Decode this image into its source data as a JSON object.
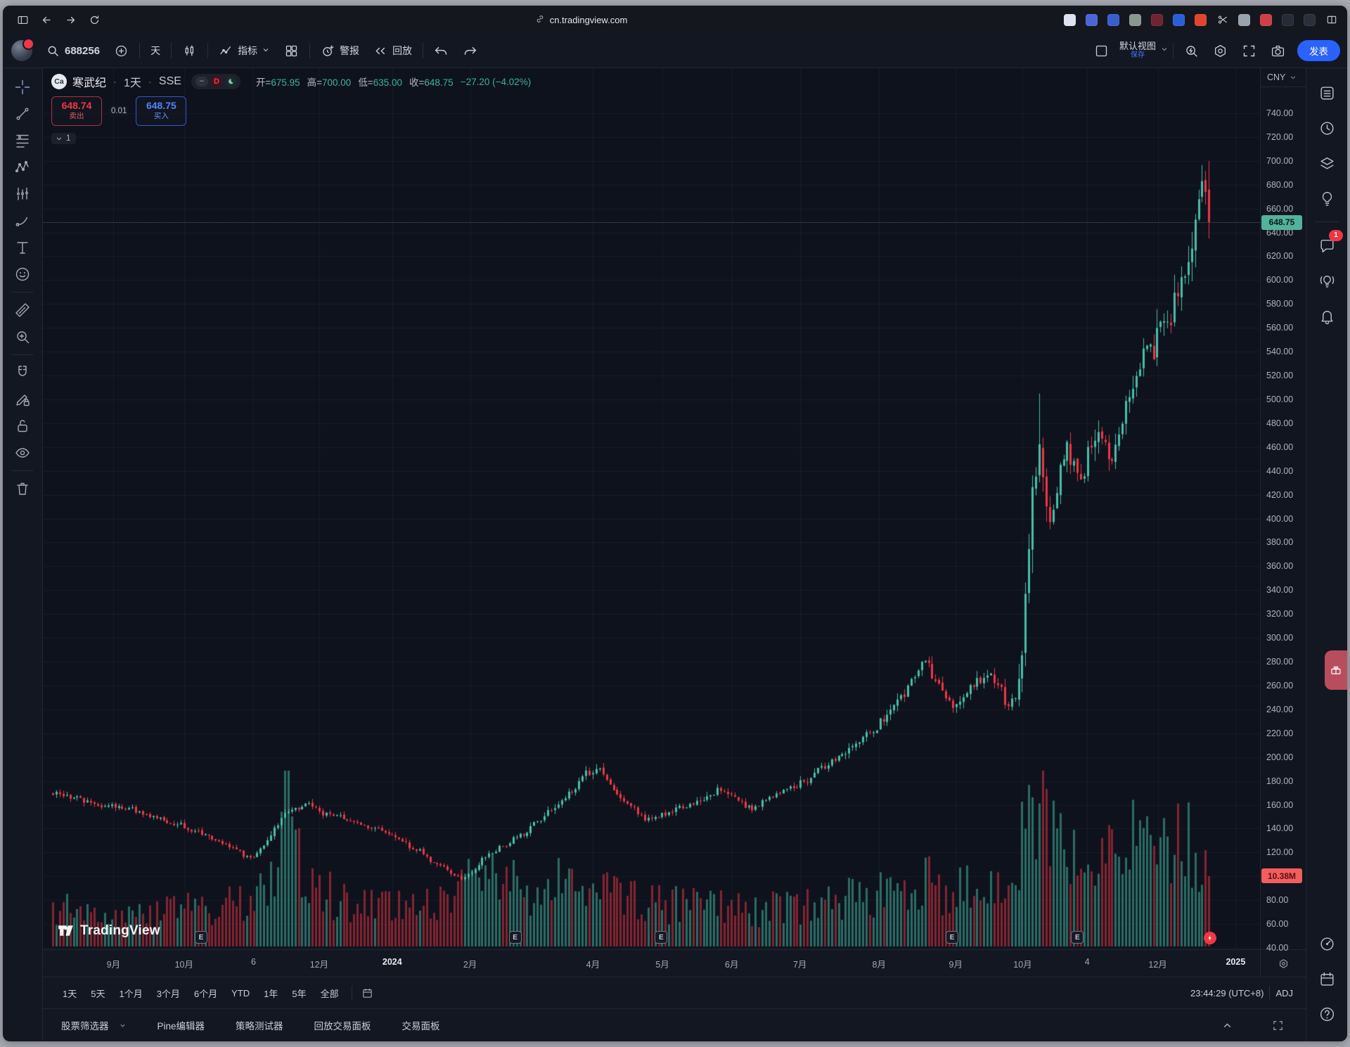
{
  "window": {
    "url": "cn.tradingview.com"
  },
  "browser": {
    "extensions": [
      {
        "name": "ext-doc",
        "color": "#dde3f0"
      },
      {
        "name": "ext-wallet",
        "color": "#4a66d4"
      },
      {
        "name": "ext-shield",
        "color": "#3a5ecf"
      },
      {
        "name": "ext-privacy",
        "color": "#8a9791"
      },
      {
        "name": "ext-record",
        "color": "#6e2531"
      },
      {
        "name": "ext-translate",
        "color": "#2b5fd9"
      },
      {
        "name": "ext-fox",
        "color": "#e0452e"
      },
      {
        "name": "ext-scissors",
        "color": "none"
      },
      {
        "name": "ext-globe",
        "color": "#9aa2ae"
      },
      {
        "name": "ext-qr",
        "color": "#cc4046"
      },
      {
        "name": "ext-infinity",
        "color": "#262b36"
      },
      {
        "name": "ext-reader",
        "color": "#2a2f3a"
      },
      {
        "name": "split-view",
        "color": "none"
      }
    ]
  },
  "toolbar": {
    "symbol": "688256",
    "interval": "天",
    "indicators": "指标",
    "alerts": "警报",
    "replay": "回放",
    "view": "默认视图",
    "save": "保存",
    "publish": "发表"
  },
  "legend": {
    "ticker_initials": "Ca",
    "title": "寒武纪",
    "sep": "·",
    "interval": "1天",
    "exchange": "SSE",
    "badge_dash": "–",
    "badge_d": "D",
    "o_label": "开=",
    "o_val": "675.95",
    "h_label": "高=",
    "h_val": "700.00",
    "l_label": "低=",
    "l_val": "635.00",
    "c_label": "收=",
    "c_val": "648.75",
    "change": "−27.20 (−4.02%)",
    "sell_price": "648.74",
    "sell_label": "卖出",
    "spread": "0.01",
    "buy_price": "648.75",
    "buy_label": "买入",
    "collapsed_count": "1"
  },
  "price_axis_header": "CNY",
  "range": {
    "items": [
      "1天",
      "5天",
      "1个月",
      "3个月",
      "6个月",
      "YTD",
      "1年",
      "5年",
      "全部"
    ],
    "clock": "23:44:29 (UTC+8)",
    "adj": "ADJ"
  },
  "tabs": {
    "items": [
      "股票筛选器",
      "Pine编辑器",
      "策略测试器",
      "回放交易面板",
      "交易面板"
    ]
  },
  "watermark": {
    "text": "TradingView"
  },
  "left_tools": [
    "crosshair",
    "trend-line",
    "fib-lines",
    "xabcd-pattern",
    "forecast-bars",
    "brush",
    "text-tool",
    "emoji",
    "|",
    "ruler",
    "zoom-in",
    "|",
    "magnet",
    "draw-lock",
    "lock-all",
    "hide-drawings",
    "|",
    "trash"
  ],
  "sidebar": {
    "top": [
      {
        "icon": "watchlist"
      },
      {
        "icon": "alerts-clock"
      },
      {
        "icon": "object-tree-layers"
      },
      {
        "icon": "ideas-bulb"
      },
      {
        "icon": "|"
      },
      {
        "icon": "chat",
        "badge": "1"
      },
      {
        "icon": "minds-broadcast"
      },
      {
        "icon": "notifications-bell"
      }
    ],
    "bottom": [
      {
        "icon": "go-to-date-target"
      },
      {
        "icon": "economic-calendar"
      },
      {
        "icon": "help-question"
      }
    ]
  },
  "chart_data": {
    "type": "candlestick",
    "title": "寒武纪 (688256) · 1天 · SSE",
    "currency": "CNY",
    "legend_position": "top-left",
    "grid": true,
    "price_axis": {
      "min": 40,
      "max": 740,
      "tick_step": 20
    },
    "last_candle": {
      "open": 675.95,
      "high": 700.0,
      "low": 635.0,
      "close": 648.75,
      "change": -27.2,
      "change_pct": -4.02
    },
    "last_price_label": "648.75",
    "last_volume_label": "10.38M",
    "time_labels": [
      {
        "t": "9月",
        "u": 0.058
      },
      {
        "t": "10月",
        "u": 0.116
      },
      {
        "t": "6",
        "u": 0.173
      },
      {
        "t": "12月",
        "u": 0.227
      },
      {
        "t": "2024",
        "u": 0.287,
        "year": true
      },
      {
        "t": "2月",
        "u": 0.351
      },
      {
        "t": "4月",
        "u": 0.452
      },
      {
        "t": "5月",
        "u": 0.509
      },
      {
        "t": "6月",
        "u": 0.566
      },
      {
        "t": "7月",
        "u": 0.622
      },
      {
        "t": "8月",
        "u": 0.687
      },
      {
        "t": "9月",
        "u": 0.75
      },
      {
        "t": "10月",
        "u": 0.805
      },
      {
        "t": "4",
        "u": 0.858
      },
      {
        "t": "12月",
        "u": 0.916
      },
      {
        "t": "2025",
        "u": 0.98,
        "year": true
      }
    ],
    "n_candles": 335,
    "series_end_frac": 0.958,
    "close_path_anchors": [
      [
        0.0,
        170
      ],
      [
        0.02,
        165
      ],
      [
        0.045,
        160
      ],
      [
        0.065,
        157
      ],
      [
        0.085,
        150
      ],
      [
        0.105,
        145
      ],
      [
        0.125,
        137
      ],
      [
        0.145,
        128
      ],
      [
        0.16,
        120
      ],
      [
        0.172,
        115
      ],
      [
        0.182,
        124
      ],
      [
        0.192,
        140
      ],
      [
        0.2,
        152
      ],
      [
        0.21,
        157
      ],
      [
        0.222,
        160
      ],
      [
        0.235,
        152
      ],
      [
        0.255,
        148
      ],
      [
        0.275,
        142
      ],
      [
        0.295,
        133
      ],
      [
        0.315,
        122
      ],
      [
        0.335,
        108
      ],
      [
        0.355,
        98
      ],
      [
        0.365,
        105
      ],
      [
        0.375,
        118
      ],
      [
        0.39,
        126
      ],
      [
        0.405,
        135
      ],
      [
        0.42,
        146
      ],
      [
        0.435,
        158
      ],
      [
        0.45,
        172
      ],
      [
        0.462,
        186
      ],
      [
        0.47,
        192
      ],
      [
        0.478,
        183
      ],
      [
        0.49,
        168
      ],
      [
        0.502,
        156
      ],
      [
        0.515,
        147
      ],
      [
        0.528,
        151
      ],
      [
        0.545,
        159
      ],
      [
        0.562,
        166
      ],
      [
        0.578,
        172
      ],
      [
        0.59,
        166
      ],
      [
        0.605,
        157
      ],
      [
        0.62,
        166
      ],
      [
        0.635,
        173
      ],
      [
        0.65,
        180
      ],
      [
        0.665,
        190
      ],
      [
        0.68,
        200
      ],
      [
        0.695,
        212
      ],
      [
        0.708,
        222
      ],
      [
        0.72,
        232
      ],
      [
        0.732,
        248
      ],
      [
        0.744,
        266
      ],
      [
        0.754,
        280
      ],
      [
        0.762,
        268
      ],
      [
        0.772,
        250
      ],
      [
        0.78,
        244
      ],
      [
        0.79,
        254
      ],
      [
        0.8,
        264
      ],
      [
        0.81,
        270
      ],
      [
        0.818,
        258
      ],
      [
        0.826,
        245
      ],
      [
        0.832,
        252
      ],
      [
        0.837,
        278
      ],
      [
        0.841,
        330
      ],
      [
        0.845,
        385
      ],
      [
        0.849,
        428
      ],
      [
        0.853,
        455
      ],
      [
        0.857,
        430
      ],
      [
        0.862,
        398
      ],
      [
        0.867,
        415
      ],
      [
        0.872,
        442
      ],
      [
        0.877,
        458
      ],
      [
        0.882,
        444
      ],
      [
        0.887,
        428
      ],
      [
        0.892,
        440
      ],
      [
        0.898,
        462
      ],
      [
        0.904,
        478
      ],
      [
        0.91,
        462
      ],
      [
        0.916,
        448
      ],
      [
        0.922,
        468
      ],
      [
        0.928,
        492
      ],
      [
        0.934,
        510
      ],
      [
        0.94,
        530
      ],
      [
        0.946,
        548
      ],
      [
        0.951,
        538
      ],
      [
        0.956,
        556
      ],
      [
        0.961,
        576
      ],
      [
        0.966,
        562
      ],
      [
        0.971,
        580
      ],
      [
        0.976,
        598
      ],
      [
        0.981,
        618
      ],
      [
        0.986,
        636
      ],
      [
        0.991,
        660
      ],
      [
        0.996,
        688
      ],
      [
        1.0,
        648.75
      ]
    ],
    "volume_anchors": [
      [
        0,
        55
      ],
      [
        0.06,
        48
      ],
      [
        0.1,
        52
      ],
      [
        0.14,
        60
      ],
      [
        0.17,
        66
      ],
      [
        0.19,
        120
      ],
      [
        0.2,
        235
      ],
      [
        0.21,
        130
      ],
      [
        0.23,
        85
      ],
      [
        0.26,
        66
      ],
      [
        0.3,
        58
      ],
      [
        0.33,
        72
      ],
      [
        0.36,
        115
      ],
      [
        0.39,
        95
      ],
      [
        0.42,
        88
      ],
      [
        0.45,
        105
      ],
      [
        0.47,
        95
      ],
      [
        0.5,
        72
      ],
      [
        0.53,
        62
      ],
      [
        0.57,
        60
      ],
      [
        0.6,
        55
      ],
      [
        0.63,
        58
      ],
      [
        0.66,
        62
      ],
      [
        0.7,
        75
      ],
      [
        0.73,
        92
      ],
      [
        0.75,
        105
      ],
      [
        0.78,
        85
      ],
      [
        0.81,
        80
      ],
      [
        0.83,
        85
      ],
      [
        0.838,
        170
      ],
      [
        0.845,
        240
      ],
      [
        0.852,
        255
      ],
      [
        0.86,
        205
      ],
      [
        0.87,
        165
      ],
      [
        0.88,
        145
      ],
      [
        0.89,
        150
      ],
      [
        0.9,
        160
      ],
      [
        0.91,
        135
      ],
      [
        0.92,
        125
      ],
      [
        0.93,
        150
      ],
      [
        0.94,
        165
      ],
      [
        0.95,
        140
      ],
      [
        0.96,
        150
      ],
      [
        0.97,
        185
      ],
      [
        0.98,
        150
      ],
      [
        0.99,
        125
      ],
      [
        1.0,
        104
      ]
    ],
    "volume_max_units": 260,
    "wick_events": [
      [
        0.853,
        505
      ]
    ],
    "earnings_marks_u": [
      0.13,
      0.388,
      0.508,
      0.747,
      0.85
    ],
    "bolt_mark_u": 0.959,
    "colors": {
      "up": "#45c1ab",
      "down": "#f23645",
      "grid": "rgba(140,152,175,0.08)",
      "accent_blue": "#2962ff",
      "last_price_tag_bg": "#53b29b",
      "volume_tag_bg": "#f35d5e",
      "ohlc_value": "#37b3a1"
    }
  }
}
